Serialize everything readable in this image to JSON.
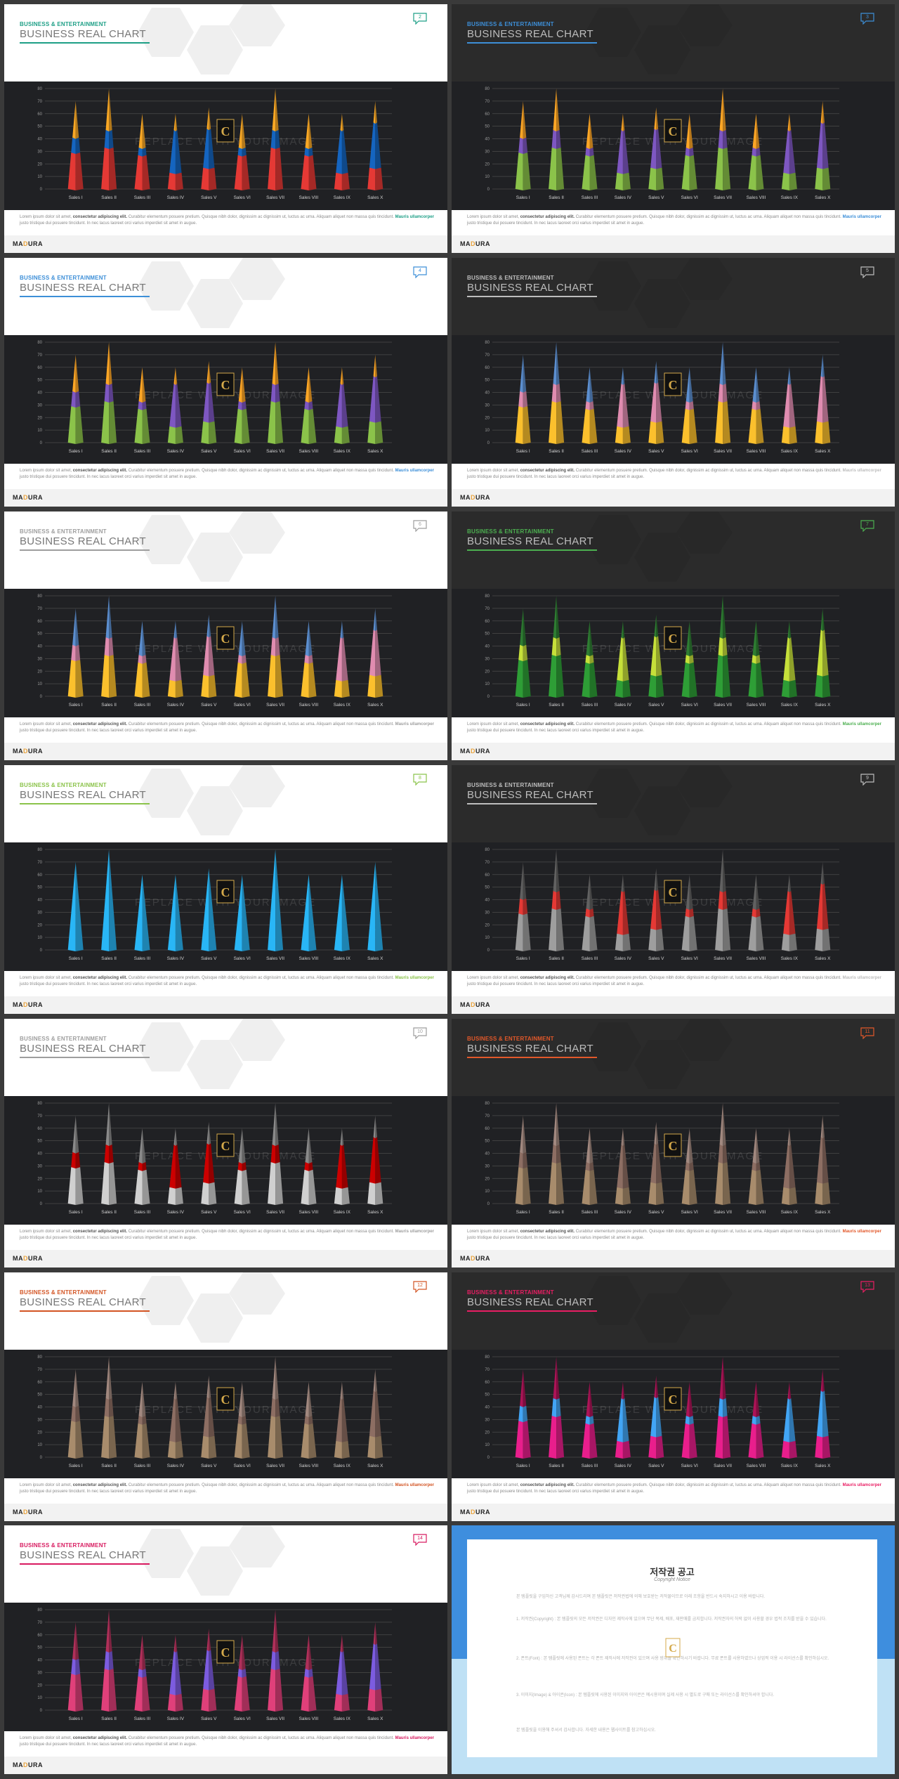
{
  "brand": {
    "first": "MA",
    "accent": "D",
    "rest": "URA"
  },
  "eyebrow": "BUSINESS & ENTERTAINMENT",
  "chart_title": "BUSINESS REAL CHART",
  "watermark": "REPLACE WITH YOUR IMAGE",
  "description": {
    "part1": "Lorem ipsum dolor sit amet, ",
    "bold1": "consectetur adipiscing elit.",
    "part2": " Curabitur elementum posuere pretium. Quisque nibh dolor, dignissim ac dignissim ut, luctus ac urna. Aliquam aliquet non massa quis tincidunt. ",
    "bold2": "Mauris ullamcorper",
    "part3": " justo tristique dui posuere tincidunt. In nec lacus laoreet orci varius imperdiet sit amet in augue."
  },
  "chart_data": {
    "type": "bar",
    "categories": [
      "Sales I",
      "Sales II",
      "Sales III",
      "Sales IV",
      "Sales V",
      "Sales VI",
      "Sales VII",
      "Sales VIII",
      "Sales IX",
      "Sales X"
    ],
    "ylim": [
      0,
      80
    ],
    "yticks": [
      0,
      10,
      20,
      30,
      40,
      50,
      60,
      70,
      80
    ],
    "values": [
      70,
      80,
      60,
      60,
      65,
      60,
      80,
      60,
      60,
      70
    ],
    "segments": [
      [
        29,
        41
      ],
      [
        33,
        47
      ],
      [
        27,
        33
      ],
      [
        13,
        47
      ],
      [
        17,
        48
      ],
      [
        27,
        33
      ],
      [
        33,
        47
      ],
      [
        27,
        33
      ],
      [
        13,
        47
      ],
      [
        17,
        53
      ]
    ]
  },
  "slides": [
    {
      "page": "2",
      "theme": "light",
      "accent": "#1d9f86",
      "colors": [
        "#e53935",
        "#1565c0",
        "#f9a825"
      ]
    },
    {
      "page": "3",
      "theme": "dark",
      "accent": "#3d8fd8",
      "colors": [
        "#8bc34a",
        "#7e57c2",
        "#ffa726"
      ]
    },
    {
      "page": "4",
      "theme": "light",
      "accent": "#3d8fd8",
      "colors": [
        "#8bc34a",
        "#7e57c2",
        "#ffa726"
      ]
    },
    {
      "page": "5",
      "theme": "dark",
      "accent": "#bdbdbd",
      "colors": [
        "#fbc02d",
        "#e08cb0",
        "#5c8fd0"
      ]
    },
    {
      "page": "6",
      "theme": "light",
      "accent": "#9e9e9e",
      "colors": [
        "#fbc02d",
        "#e08cb0",
        "#5c8fd0"
      ]
    },
    {
      "page": "7",
      "theme": "dark",
      "accent": "#4caf50",
      "colors": [
        "#2e9e36",
        "#c6e03a",
        "#2e7d32"
      ]
    },
    {
      "page": "8",
      "theme": "light",
      "accent": "#8bc34a",
      "colors": [
        "#29b6f6",
        "#29b6f6",
        "#29b6f6"
      ]
    },
    {
      "page": "9",
      "theme": "dark",
      "accent": "#bdbdbd",
      "colors": [
        "#9e9e9e",
        "#e53935",
        "#616161"
      ]
    },
    {
      "page": "10",
      "theme": "light",
      "accent": "#9e9e9e",
      "colors": [
        "#d0d0d0",
        "#cc0000",
        "#8a8a8a"
      ]
    },
    {
      "page": "11",
      "theme": "dark",
      "accent": "#e2582a",
      "colors": [
        "#a88c6c",
        "#8d6e63",
        "#a1887f"
      ]
    },
    {
      "page": "12",
      "theme": "light",
      "accent": "#d35423",
      "colors": [
        "#a88c6c",
        "#8d6e63",
        "#a1887f"
      ]
    },
    {
      "page": "13",
      "theme": "dark",
      "accent": "#e91e63",
      "colors": [
        "#e91e8c",
        "#42a5f5",
        "#ad1457"
      ]
    },
    {
      "page": "14",
      "theme": "light",
      "accent": "#d81b60",
      "colors": [
        "#e0407a",
        "#7c5ce0",
        "#b0305a"
      ]
    }
  ],
  "notice": {
    "title": "저작권 공고",
    "subtitle": "Copyright Notice",
    "p1": "본 템플릿을 구입하신 고객님께 감사드리며 본 템플릿은 저작권법에 의해 보호받는 저작물이므로 아래 조항을 반드시 숙지하시고 이용 바랍니다.",
    "p2": "1. 저작권(Copyright) : 본 템플릿의 모든 저작권은 디자인 제작사에 있으며 무단 복제, 배포, 재판매를 금지합니다. 저작권자의 허락 없이 사용할 경우 법적 조치를 받을 수 있습니다.",
    "p3": "2. 폰트(Font) : 본 템플릿에 사용된 폰트는 각 폰트 제작사에 저작권이 있으며 사용 범위를 확인하시기 바랍니다. 무료 폰트를 사용하였으나 상업적 이용 시 라이선스를 확인하십시오.",
    "p4": "3. 이미지(Image) & 아이콘(Icon) : 본 템플릿에 사용된 이미지와 아이콘은 예시용이며 실제 사용 시 별도로 구매 또는 라이선스를 확인하셔야 합니다.",
    "p5": "본 템플릿을 이용해 주셔서 감사합니다. 자세한 내용은 웹사이트를 참고하십시오."
  }
}
